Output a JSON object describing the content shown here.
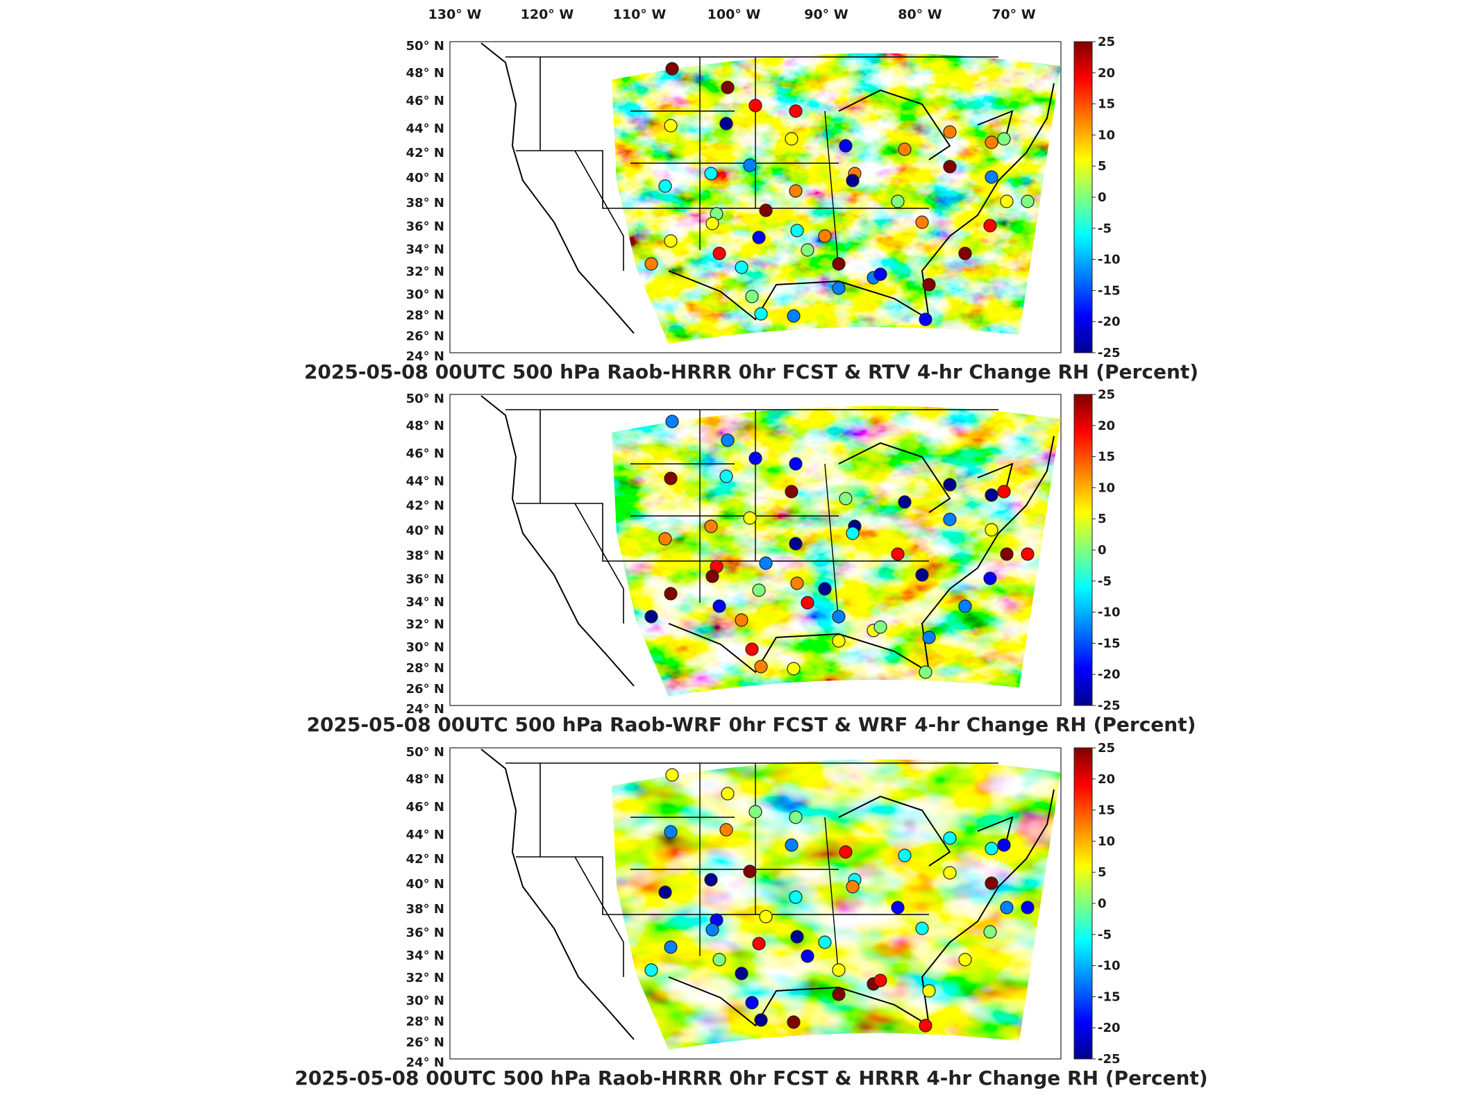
{
  "longitude_labels": [
    "130° W",
    "120° W",
    "110° W",
    "100° W",
    "90° W",
    "80° W",
    "70° W"
  ],
  "latitude_labels": [
    "50° N",
    "48° N",
    "46° N",
    "44° N",
    "42° N",
    "40° N",
    "38° N",
    "36° N",
    "34° N",
    "32° N",
    "30° N",
    "28° N",
    "26° N",
    "24° N"
  ],
  "colorbar": {
    "ticks": [
      "25",
      "20",
      "15",
      "10",
      "5",
      "0",
      "-5",
      "-10",
      "-15",
      "-20",
      "-25"
    ],
    "colors": [
      "#00008f",
      "#0000ff",
      "#0080ff",
      "#00ffff",
      "#80ff80",
      "#ffff00",
      "#ff8000",
      "#ff0000",
      "#800000"
    ]
  },
  "panels": [
    {
      "title": "2025-05-08 00UTC 500 hPa Raob-HRRR 0hr FCST & RTV 4-hr Change RH (Percent)"
    },
    {
      "title": "2025-05-08 00UTC 500 hPa Raob-WRF 0hr FCST & WRF 4-hr Change RH (Percent)"
    },
    {
      "title": "2025-05-08 00UTC 500 hPa Raob-HRRR 0hr FCST & HRRR 4-hr Change RH (Percent)"
    }
  ]
}
